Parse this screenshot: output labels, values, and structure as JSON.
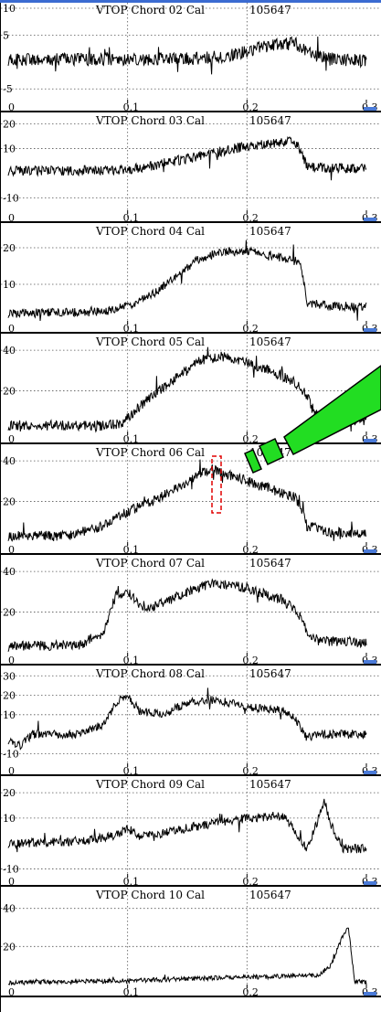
{
  "shot_number": "105647",
  "chart_data": [
    {
      "type": "line",
      "title": "VTOP Chord 02 Cal",
      "shot": "105647",
      "xlim": [
        0,
        0.3
      ],
      "ylim": [
        -7,
        10
      ],
      "x_ticks": [
        "0",
        "0.1",
        "0.2",
        "0.3"
      ],
      "y_ticks": [
        {
          "v": 10,
          "label": "10"
        },
        {
          "v": 5,
          "label": "5"
        },
        {
          "v": -5,
          "label": "-5"
        }
      ],
      "grid": true,
      "series": [
        {
          "x": [
            0,
            0.05,
            0.1,
            0.15,
            0.18,
            0.2,
            0.22,
            0.24,
            0.25,
            0.26,
            0.27,
            0.28,
            0.3
          ],
          "y": [
            0.5,
            0.5,
            0.5,
            0.6,
            1,
            2,
            3,
            3.5,
            2,
            1,
            0.5,
            0.3,
            0.3
          ],
          "noise": 1.2
        }
      ]
    },
    {
      "type": "line",
      "title": "VTOP Chord 03 Cal",
      "shot": "105647",
      "xlim": [
        0,
        0.3
      ],
      "ylim": [
        -15,
        22
      ],
      "x_ticks": [
        "0",
        "0.1",
        "0.2",
        "0.3"
      ],
      "y_ticks": [
        {
          "v": 20,
          "label": "20"
        },
        {
          "v": 10,
          "label": "10"
        },
        {
          "v": -10,
          "label": "-10"
        }
      ],
      "grid": true,
      "series": [
        {
          "x": [
            0,
            0.05,
            0.1,
            0.12,
            0.15,
            0.18,
            0.2,
            0.22,
            0.24,
            0.245,
            0.25,
            0.27,
            0.3
          ],
          "y": [
            1,
            1,
            1.5,
            3,
            6,
            9,
            11,
            12,
            13,
            9,
            3,
            2,
            2
          ],
          "noise": 2
        }
      ]
    },
    {
      "type": "line",
      "title": "VTOP Chord 04 Cal",
      "shot": "105647",
      "xlim": [
        0,
        0.3
      ],
      "ylim": [
        0,
        25
      ],
      "x_ticks": [
        "0",
        "0.1",
        "0.2",
        "0.3"
      ],
      "y_ticks": [
        {
          "v": 20,
          "label": "20"
        },
        {
          "v": 10,
          "label": "10"
        }
      ],
      "grid": true,
      "series": [
        {
          "x": [
            0,
            0.08,
            0.1,
            0.12,
            0.14,
            0.16,
            0.18,
            0.2,
            0.22,
            0.245,
            0.25,
            0.27,
            0.3
          ],
          "y": [
            2,
            2.5,
            4,
            7,
            12,
            17,
            19,
            19,
            18,
            16,
            5,
            4,
            4
          ],
          "noise": 1.2
        }
      ]
    },
    {
      "type": "line",
      "title": "VTOP Chord 05 Cal",
      "shot": "105647",
      "xlim": [
        0,
        0.3
      ],
      "ylim": [
        0,
        45
      ],
      "x_ticks": [
        "0",
        "0.1",
        "0.2",
        "0.3"
      ],
      "y_ticks": [
        {
          "v": 40,
          "label": "40"
        },
        {
          "v": 20,
          "label": "20"
        }
      ],
      "grid": true,
      "series": [
        {
          "x": [
            0,
            0.08,
            0.095,
            0.11,
            0.13,
            0.15,
            0.16,
            0.18,
            0.2,
            0.22,
            0.24,
            0.25,
            0.26,
            0.3
          ],
          "y": [
            3,
            3,
            4,
            12,
            22,
            30,
            35,
            37,
            34,
            30,
            24,
            18,
            6,
            5
          ],
          "noise": 2.5
        }
      ]
    },
    {
      "type": "line",
      "title": "VTOP Chord 06 Cal",
      "shot": "105647",
      "xlim": [
        0,
        0.3
      ],
      "ylim": [
        0,
        45
      ],
      "x_ticks": [
        "0",
        "0.1",
        "0.2",
        "0.3"
      ],
      "y_ticks": [
        {
          "v": 40,
          "label": "40"
        },
        {
          "v": 20,
          "label": "20"
        }
      ],
      "grid": true,
      "series": [
        {
          "x": [
            0,
            0.05,
            0.08,
            0.1,
            0.12,
            0.14,
            0.16,
            0.17,
            0.2,
            0.22,
            0.24,
            0.245,
            0.25,
            0.27,
            0.3
          ],
          "y": [
            3,
            3,
            8,
            15,
            20,
            26,
            34,
            36,
            30,
            26,
            22,
            18,
            8,
            5,
            4
          ],
          "noise": 2.5
        }
      ]
    },
    {
      "type": "line",
      "title": "VTOP Chord 07 Cal",
      "shot": "105647",
      "xlim": [
        0,
        0.3
      ],
      "ylim": [
        0,
        45
      ],
      "x_ticks": [
        "0",
        "0.1",
        "0.2",
        "0.3"
      ],
      "y_ticks": [
        {
          "v": 40,
          "label": "40"
        },
        {
          "v": 20,
          "label": "20"
        }
      ],
      "grid": true,
      "series": [
        {
          "x": [
            0,
            0.06,
            0.08,
            0.09,
            0.1,
            0.11,
            0.12,
            0.15,
            0.17,
            0.2,
            0.23,
            0.245,
            0.25,
            0.26,
            0.3
          ],
          "y": [
            3,
            4,
            10,
            28,
            30,
            24,
            22,
            30,
            34,
            32,
            26,
            18,
            10,
            6,
            5
          ],
          "noise": 2.5
        }
      ]
    },
    {
      "type": "line",
      "title": "VTOP Chord 08 Cal",
      "shot": "105647",
      "xlim": [
        0,
        0.3
      ],
      "ylim": [
        -15,
        32
      ],
      "x_ticks": [
        "0",
        "0.1",
        "0.2",
        "0.3"
      ],
      "y_ticks": [
        {
          "v": 30,
          "label": "30"
        },
        {
          "v": 20,
          "label": "20"
        },
        {
          "v": 10,
          "label": "10"
        },
        {
          "v": -10,
          "label": "-10"
        }
      ],
      "grid": true,
      "series": [
        {
          "x": [
            0,
            0.01,
            0.02,
            0.06,
            0.08,
            0.09,
            0.1,
            0.11,
            0.13,
            0.15,
            0.17,
            0.2,
            0.23,
            0.24,
            0.25,
            0.26,
            0.3
          ],
          "y": [
            -3,
            -6,
            0,
            0,
            5,
            16,
            20,
            12,
            10,
            16,
            18,
            14,
            12,
            8,
            -2,
            0,
            0
          ],
          "noise": 2.2
        }
      ]
    },
    {
      "type": "line",
      "title": "VTOP Chord 09 Cal",
      "shot": "105647",
      "xlim": [
        0,
        0.3
      ],
      "ylim": [
        -12,
        24
      ],
      "x_ticks": [
        "0",
        "0.1",
        "0.2",
        "0.3"
      ],
      "y_ticks": [
        {
          "v": 20,
          "label": "20"
        },
        {
          "v": 10,
          "label": "10"
        },
        {
          "v": -10,
          "label": "-10"
        }
      ],
      "grid": true,
      "series": [
        {
          "x": [
            0,
            0.06,
            0.09,
            0.1,
            0.11,
            0.13,
            0.16,
            0.2,
            0.23,
            0.24,
            0.25,
            0.26,
            0.265,
            0.27,
            0.28,
            0.3
          ],
          "y": [
            0,
            1,
            3,
            6,
            3,
            4,
            7,
            10,
            11,
            5,
            -2,
            10,
            17,
            8,
            -2,
            -2
          ],
          "noise": 1.8
        }
      ]
    },
    {
      "type": "line",
      "title": "VTOP Chord 10 Cal",
      "shot": "105647",
      "xlim": [
        0,
        0.3
      ],
      "ylim": [
        0,
        48
      ],
      "x_ticks": [
        "0",
        "0.1",
        "0.2",
        "0.3"
      ],
      "y_ticks": [
        {
          "v": 40,
          "label": "40"
        },
        {
          "v": 20,
          "label": "20"
        }
      ],
      "grid": true,
      "series": [
        {
          "x": [
            0,
            0.05,
            0.1,
            0.15,
            0.2,
            0.22,
            0.24,
            0.26,
            0.27,
            0.28,
            0.285,
            0.29,
            0.3
          ],
          "y": [
            1,
            1.5,
            2,
            3,
            4,
            4,
            5,
            5,
            10,
            25,
            30,
            2,
            1
          ],
          "noise": 1.2
        }
      ]
    }
  ]
}
